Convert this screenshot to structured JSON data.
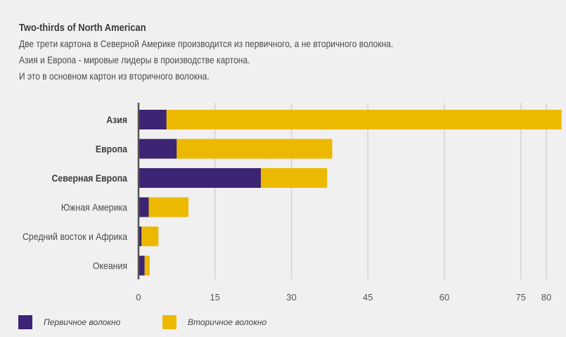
{
  "header": {
    "title": "Two-thirds of North American",
    "lines": [
      "Две трети картона в Северной Америке производится из первичного, а не вторичного волокна.",
      "Азия и Европа - мировые лидеры в производстве картона.",
      "И это в основном картон из вторичного волокна."
    ]
  },
  "colors": {
    "primary": "#3d2474",
    "secondary": "#edb900",
    "grid": "#d3d3d3",
    "axis": "#555555",
    "background": "#f1f0f0"
  },
  "chart_data": {
    "type": "bar",
    "orientation": "horizontal",
    "stacked": true,
    "categories": [
      "Азия",
      "Европа",
      "Северная Европа",
      "Южная Америка",
      "Средний восток и Африка",
      "Океания"
    ],
    "bold_categories": [
      "Азия",
      "Европа",
      "Северная Европа"
    ],
    "series": [
      {
        "name": "Первичное волокно",
        "color": "#3d2474",
        "values": [
          5.5,
          7.5,
          24.0,
          2.0,
          0.6,
          1.2
        ]
      },
      {
        "name": "Вторичное волокно",
        "color": "#edb900",
        "values": [
          77.5,
          30.5,
          13.0,
          7.8,
          3.3,
          1.0
        ]
      }
    ],
    "xlim": [
      0,
      80
    ],
    "xticks": [
      0,
      15,
      30,
      45,
      60,
      75,
      80
    ],
    "grid": true,
    "legend_position": "bottom-left"
  }
}
